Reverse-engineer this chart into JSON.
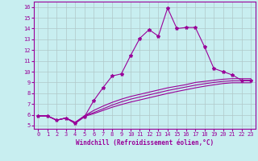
{
  "xlabel": "Windchill (Refroidissement éolien,°C)",
  "bg_color": "#c8eef0",
  "line_color": "#990099",
  "grid_color": "#b0c8c8",
  "xlim": [
    -0.5,
    23.5
  ],
  "ylim": [
    4.7,
    16.5
  ],
  "xticks": [
    0,
    1,
    2,
    3,
    4,
    5,
    6,
    7,
    8,
    9,
    10,
    11,
    12,
    13,
    14,
    15,
    16,
    17,
    18,
    19,
    20,
    21,
    22,
    23
  ],
  "yticks": [
    5,
    6,
    7,
    8,
    9,
    10,
    11,
    12,
    13,
    14,
    15,
    16
  ],
  "line1_x": [
    0,
    1,
    2,
    3,
    4,
    5,
    6,
    7,
    8,
    9,
    10,
    11,
    12,
    13,
    14,
    15,
    16,
    17,
    18,
    19,
    20,
    21,
    22,
    23
  ],
  "line1_y": [
    5.9,
    5.9,
    5.5,
    5.7,
    5.2,
    5.8,
    7.3,
    8.5,
    9.6,
    9.8,
    11.5,
    13.1,
    13.9,
    13.3,
    15.9,
    14.0,
    14.1,
    14.1,
    12.3,
    10.3,
    10.0,
    9.7,
    9.2,
    9.2
  ],
  "line2_x": [
    0,
    1,
    2,
    3,
    4,
    5,
    6,
    7,
    8,
    9,
    10,
    11,
    12,
    13,
    14,
    15,
    16,
    17,
    18,
    19,
    20,
    21,
    22,
    23
  ],
  "line2_y": [
    5.9,
    5.9,
    5.5,
    5.7,
    5.2,
    5.9,
    6.4,
    6.8,
    7.15,
    7.45,
    7.7,
    7.9,
    8.1,
    8.3,
    8.5,
    8.65,
    8.8,
    9.0,
    9.1,
    9.2,
    9.3,
    9.35,
    9.35,
    9.35
  ],
  "line3_x": [
    0,
    1,
    2,
    3,
    4,
    5,
    6,
    7,
    8,
    9,
    10,
    11,
    12,
    13,
    14,
    15,
    16,
    17,
    18,
    19,
    20,
    21,
    22,
    23
  ],
  "line3_y": [
    5.9,
    5.9,
    5.5,
    5.7,
    5.3,
    5.9,
    6.2,
    6.55,
    6.9,
    7.2,
    7.45,
    7.65,
    7.85,
    8.05,
    8.25,
    8.42,
    8.58,
    8.75,
    8.88,
    9.0,
    9.1,
    9.15,
    9.15,
    9.15
  ],
  "line4_x": [
    0,
    1,
    2,
    3,
    4,
    5,
    6,
    7,
    8,
    9,
    10,
    11,
    12,
    13,
    14,
    15,
    16,
    17,
    18,
    19,
    20,
    21,
    22,
    23
  ],
  "line4_y": [
    5.9,
    5.9,
    5.5,
    5.7,
    5.3,
    5.85,
    6.1,
    6.4,
    6.7,
    6.95,
    7.18,
    7.38,
    7.58,
    7.78,
    7.98,
    8.16,
    8.33,
    8.5,
    8.65,
    8.78,
    8.9,
    8.97,
    8.97,
    8.97
  ],
  "marker": "*",
  "markersize": 3,
  "linewidth": 0.8
}
